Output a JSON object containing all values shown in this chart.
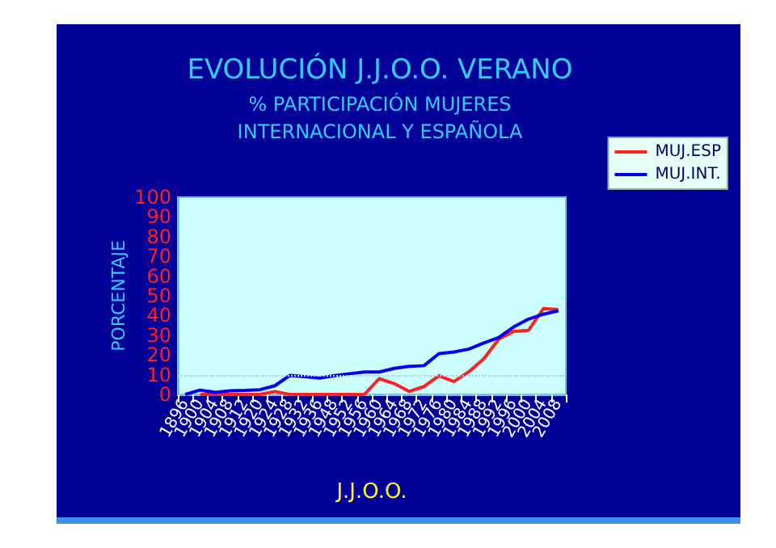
{
  "chart_data": {
    "type": "line",
    "title": "EVOLUCIÓN J.J.O.O. VERANO",
    "subtitle": "% PARTICIPACIÓN MUJERES\nINTERNACIONAL Y ESPAÑOLA",
    "xlabel": "J.J.O.O.",
    "ylabel": "PORCENTAJE",
    "categories": [
      "1896",
      "1900",
      "1904",
      "1908",
      "1912",
      "1920",
      "1924",
      "1928",
      "1932",
      "1936",
      "1948",
      "1952",
      "1956",
      "1960",
      "1964",
      "1968",
      "1972",
      "1976",
      "1980",
      "1984",
      "1988",
      "1992",
      "1996",
      "2000",
      "2004",
      "2008"
    ],
    "series": [
      {
        "name": "MUJ.ESP",
        "color": "#ff2020",
        "values": [
          null,
          0,
          0,
          0,
          0,
          0,
          1.5,
          0,
          0,
          0,
          0,
          0,
          0,
          8,
          5.5,
          1.5,
          4,
          9.5,
          6.5,
          11.5,
          18,
          28,
          32,
          32.5,
          43.5,
          43
        ]
      },
      {
        "name": "MUJ.INT.",
        "color": "#0000ee",
        "values": [
          0,
          2.2,
          1,
          1.8,
          2,
          2.4,
          4.4,
          9.6,
          9,
          8.3,
          9.5,
          10.5,
          11.4,
          11.4,
          13.2,
          14.2,
          14.6,
          20.7,
          21.5,
          23,
          26.1,
          28.8,
          34.2,
          38.2,
          40.7,
          42.4
        ]
      }
    ],
    "ylim": [
      0,
      100
    ],
    "yticks": [
      0,
      10,
      20,
      30,
      40,
      50,
      60,
      70,
      80,
      90,
      100
    ],
    "grid": false,
    "legend": "top right",
    "marker": "none",
    "line_style": "solid",
    "ref_lines": [
      {
        "axis": "y",
        "value": 10,
        "color": "#a8d0d8",
        "line_style": "dotted"
      }
    ]
  }
}
